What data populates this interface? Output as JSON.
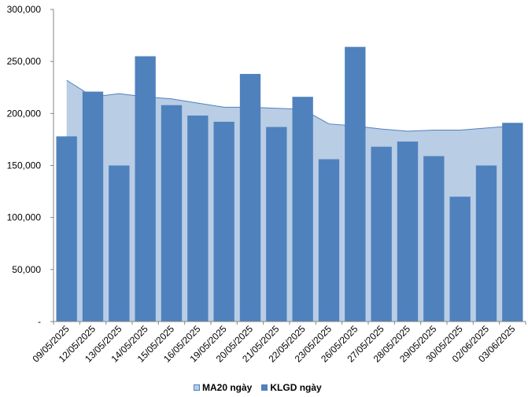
{
  "chart_data": {
    "type": "bar",
    "categories": [
      "09/05/2025",
      "12/05/2025",
      "13/05/2025",
      "14/05/2025",
      "15/05/2025",
      "16/05/2025",
      "19/05/2025",
      "20/05/2025",
      "21/05/2025",
      "22/05/2025",
      "23/05/2025",
      "26/05/2025",
      "27/05/2025",
      "28/05/2025",
      "29/05/2025",
      "30/05/2025",
      "02/06/2025",
      "03/06/2025"
    ],
    "series": [
      {
        "name": "KLGD ngày",
        "type": "bar",
        "color": "#4f81bd",
        "values": [
          178000,
          221000,
          150000,
          255000,
          208000,
          198000,
          192000,
          238000,
          187000,
          216000,
          156000,
          264000,
          168000,
          173000,
          159000,
          120000,
          150000,
          191000
        ]
      },
      {
        "name": "MA20 ngày",
        "type": "area",
        "color": "#b9cde5",
        "line_color": "#4f81bd",
        "values": [
          232000,
          216000,
          219000,
          216000,
          214000,
          210000,
          206000,
          206000,
          205000,
          204000,
          190000,
          188000,
          185000,
          183000,
          184000,
          184000,
          186000,
          188000
        ]
      }
    ],
    "y_ticks": [
      "-",
      "50,000",
      "100,000",
      "150,000",
      "200,000",
      "250,000",
      "300,000"
    ],
    "ylim": [
      0,
      300000
    ],
    "y_step": 50000,
    "legend": "bottom-center",
    "grid": false
  }
}
